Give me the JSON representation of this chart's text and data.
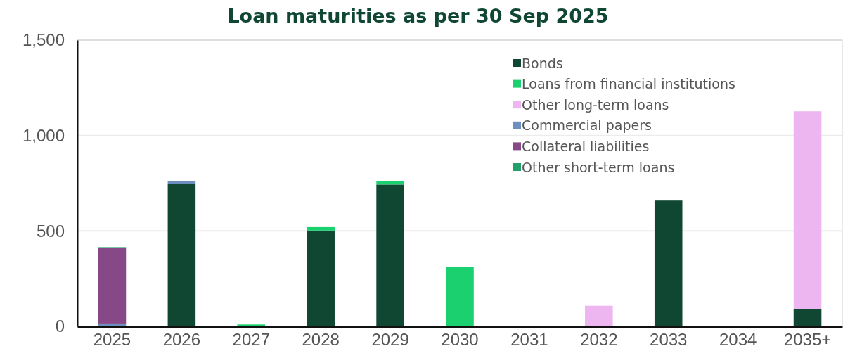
{
  "chart_data": {
    "type": "bar",
    "stacked": true,
    "title": "Loan maturities as per 30 Sep 2025",
    "categories": [
      "2025",
      "2026",
      "2027",
      "2028",
      "2029",
      "2030",
      "2031",
      "2032",
      "2033",
      "2034",
      "2035+"
    ],
    "series": [
      {
        "name": "Bonds",
        "color": "#0f4733",
        "values": [
          0,
          745,
          0,
          502,
          743,
          0,
          0,
          0,
          659,
          0,
          92
        ]
      },
      {
        "name": "Loans from financial institutions",
        "color": "#1bd16f",
        "values": [
          0,
          0,
          10,
          18,
          19,
          310,
          0,
          0,
          0,
          0,
          0
        ]
      },
      {
        "name": "Other long-term loans",
        "color": "#edb6f0",
        "values": [
          0,
          0,
          0,
          0,
          0,
          0,
          0,
          108,
          0,
          0,
          1035
        ]
      },
      {
        "name": "Commercial papers",
        "color": "#6d8fbf",
        "values": [
          15,
          18,
          0,
          0,
          0,
          0,
          0,
          0,
          0,
          0,
          0
        ]
      },
      {
        "name": "Collateral liabilities",
        "color": "#874887",
        "values": [
          395,
          0,
          0,
          0,
          0,
          0,
          0,
          0,
          0,
          0,
          0
        ]
      },
      {
        "name": "Other short-term loans",
        "color": "#22a06b",
        "values": [
          5,
          0,
          0,
          0,
          0,
          0,
          0,
          0,
          0,
          0,
          0
        ]
      }
    ],
    "ylim": [
      0,
      1500
    ],
    "yticks": [
      0,
      {
        "value": 500,
        "label": "500"
      },
      {
        "value": 1000,
        "label": "1,000"
      },
      {
        "value": 1500,
        "label": "1,500"
      }
    ],
    "grid": "y",
    "legend": "top right"
  }
}
